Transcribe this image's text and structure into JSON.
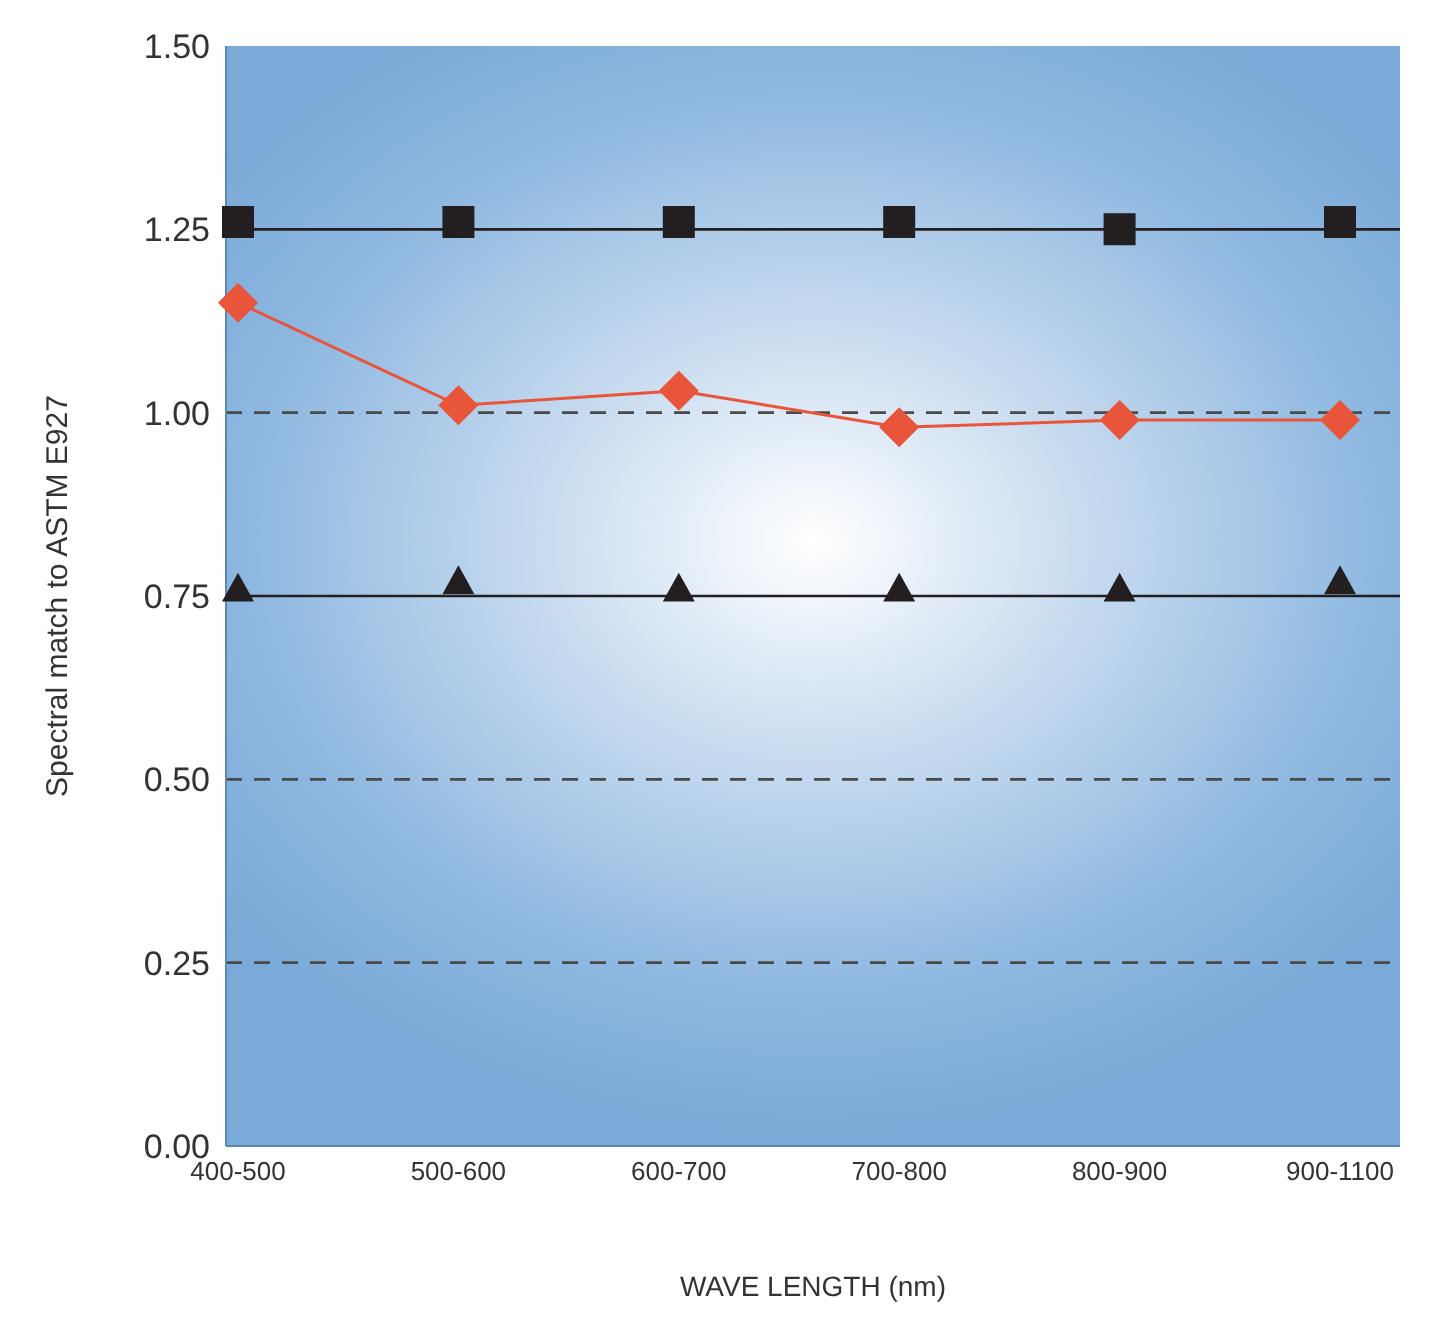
{
  "chart_data": {
    "type": "line",
    "xlabel": "WAVE LENGTH (nm)",
    "ylabel": "Spectral match to ASTM E927",
    "categories": [
      "400-500",
      "500-600",
      "600-700",
      "700-800",
      "800-900",
      "900-1100"
    ],
    "series": [
      {
        "type": "scatter",
        "marker": "square",
        "color": "#231f20",
        "values": [
          1.26,
          1.26,
          1.26,
          1.26,
          1.25,
          1.26
        ]
      },
      {
        "type": "line",
        "marker": "diamond",
        "color": "#e8553a",
        "values": [
          1.15,
          1.01,
          1.03,
          0.98,
          0.99,
          0.99
        ]
      },
      {
        "type": "scatter",
        "marker": "triangle",
        "color": "#231f20",
        "values": [
          0.76,
          0.77,
          0.76,
          0.76,
          0.76,
          0.77
        ]
      }
    ],
    "ylim": [
      0,
      1.5
    ],
    "yticks": [
      {
        "value": 0,
        "label": "0.00"
      },
      {
        "value": 0.25,
        "label": "0.25"
      },
      {
        "value": 0.5,
        "label": "0.50"
      },
      {
        "value": 0.75,
        "label": "0.75"
      },
      {
        "value": 1,
        "label": "1.00"
      },
      {
        "value": 1.25,
        "label": "1.25"
      },
      {
        "value": 1.5,
        "label": "1.50"
      }
    ],
    "ref_lines": [
      {
        "axis": "y",
        "value": 1.25,
        "line_style": "solid",
        "color": "#231f20"
      },
      {
        "axis": "y",
        "value": 1,
        "line_style": "dashed",
        "color": "#4a4a4a"
      },
      {
        "axis": "y",
        "value": 0.75,
        "line_style": "solid",
        "color": "#231f20"
      },
      {
        "axis": "y",
        "value": 0.5,
        "line_style": "dashed",
        "color": "#4a4a4a"
      },
      {
        "axis": "y",
        "value": 0.25,
        "line_style": "dashed",
        "color": "#4a4a4a"
      }
    ],
    "grid": false
  }
}
